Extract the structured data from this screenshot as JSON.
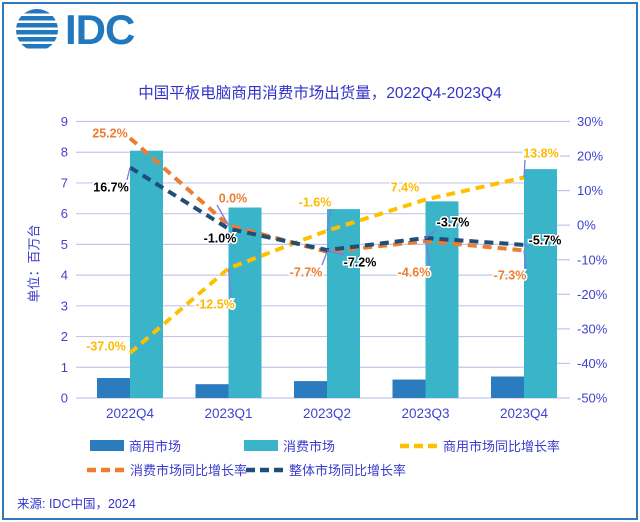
{
  "frame": {
    "border_color": "#2E78BC"
  },
  "logo": {
    "text": "IDC",
    "color": "#2278BE"
  },
  "title": {
    "text": "中国平板电脑商用消费市场出货量，2022Q4-2023Q4",
    "color": "#3333CC"
  },
  "y_axis_title": "单位：百万台",
  "source": "来源: IDC中国，2024",
  "colors": {
    "grid": "#C3C5EF",
    "axis_text": "#4045CD",
    "leader_line": "#7B7BE0",
    "commercial_bar": "#2B7BBF",
    "consumer_bar": "#3AB4C9",
    "commercial_growth_line": "#FFC000",
    "consumer_growth_line": "#ED7D31",
    "overall_growth_line": "#1F4E79"
  },
  "chart_data": {
    "type": "combo-bar-line",
    "title": "中国平板电脑商用消费市场出货量，2022Q4-2023Q4",
    "categories": [
      "2022Q4",
      "2023Q1",
      "2023Q2",
      "2023Q3",
      "2023Q4"
    ],
    "bar_series": [
      {
        "key": "commercial",
        "name": "商用市场",
        "color": "#2B7BBF",
        "values": [
          0.65,
          0.45,
          0.55,
          0.6,
          0.7
        ]
      },
      {
        "key": "consumer",
        "name": "消费市场",
        "color": "#3AB4C9",
        "values": [
          8.05,
          6.2,
          6.15,
          6.4,
          7.45
        ]
      }
    ],
    "line_series": [
      {
        "key": "commercial-growth",
        "name": "商用市场同比增长率",
        "color": "#FFC000",
        "label_color": "#FFB900",
        "values_pct": [
          -37.0,
          -12.5,
          -1.6,
          7.4,
          13.8
        ],
        "labels": [
          "-37.0%",
          "-12.5%",
          "-1.6%",
          "7.4%",
          "13.8%"
        ]
      },
      {
        "key": "consumer-growth",
        "name": "消费市场同比增长率",
        "color": "#ED7D31",
        "label_color": "#ED7D31",
        "values_pct": [
          25.2,
          0.0,
          -7.7,
          -4.6,
          -7.3
        ],
        "labels": [
          "25.2%",
          "0.0%",
          "-7.7%",
          "-4.6%",
          "-7.3%"
        ]
      },
      {
        "key": "overall-growth",
        "name": "整体市场同比增长率",
        "color": "#1F4E79",
        "label_color": "#000000",
        "values_pct": [
          16.7,
          -1.0,
          -7.2,
          -3.7,
          -5.7
        ],
        "labels": [
          "16.7%",
          "-1.0%",
          "-7.2%",
          "-3.7%",
          "-5.7%"
        ]
      }
    ],
    "left_axis": {
      "title": "单位：百万台",
      "min": 0,
      "max": 9,
      "ticks": [
        0,
        1,
        2,
        3,
        4,
        5,
        6,
        7,
        8,
        9
      ]
    },
    "right_axis": {
      "min": -50,
      "max": 30,
      "ticks": [
        "30%",
        "20%",
        "10%",
        "0%",
        "-10%",
        "-20%",
        "-30%",
        "-40%",
        "-50%"
      ]
    },
    "grid": true,
    "legend_position": "bottom"
  }
}
